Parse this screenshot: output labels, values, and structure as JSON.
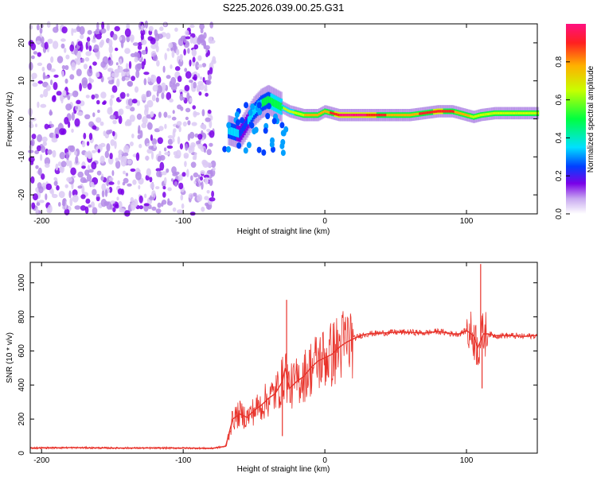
{
  "title": "S225.2026.039.00.25.G31",
  "chart_data": [
    {
      "type": "heatmap",
      "title": "S225.2026.039.00.25.G31",
      "xlabel": "Height of straight line (km)",
      "ylabel": "Frequency (Hz)",
      "xlim": [
        -208,
        150
      ],
      "ylim": [
        -25,
        25
      ],
      "xticks": [
        -200,
        -100,
        0,
        100
      ],
      "xtick_labels": [
        "-200",
        "-100",
        "0",
        "100"
      ],
      "yticks": [
        -20,
        -10,
        0,
        10,
        20
      ],
      "ytick_labels": [
        "-20",
        "-10",
        "0",
        "10",
        "20"
      ],
      "noise_region_x": [
        -208,
        -78
      ],
      "ridge": {
        "x": [
          -68,
          -60,
          -55,
          -50,
          -45,
          -40,
          -35,
          -30,
          -25,
          -20,
          -15,
          -10,
          -5,
          0,
          5,
          10,
          20,
          30,
          40,
          50,
          60,
          70,
          80,
          90,
          100,
          105,
          110,
          120,
          130,
          140,
          150
        ],
        "freq": [
          -3,
          -4,
          -1,
          2,
          4,
          5,
          4,
          3,
          2,
          1.5,
          1,
          1,
          1,
          2,
          1.5,
          1,
          1,
          1,
          1,
          1,
          1,
          1.5,
          2,
          2,
          1,
          0.5,
          1,
          1.5,
          1.5,
          1.5,
          1.5
        ],
        "amp": [
          0.3,
          0.25,
          0.25,
          0.3,
          0.35,
          0.4,
          0.45,
          0.5,
          0.55,
          0.6,
          0.65,
          0.7,
          0.7,
          0.75,
          0.8,
          0.9,
          0.95,
          0.9,
          0.8,
          0.75,
          0.75,
          0.8,
          0.85,
          0.8,
          0.7,
          0.6,
          0.65,
          0.65,
          0.6,
          0.6,
          0.6
        ]
      },
      "colorbar": {
        "label": "Normalized spectral amplitude",
        "range": [
          0,
          1
        ],
        "ticks": [
          0.0,
          0.2,
          0.4,
          0.6,
          0.8
        ],
        "tick_labels": [
          "0.0",
          "0.2",
          "0.4",
          "0.6",
          "0.8"
        ]
      }
    },
    {
      "type": "line",
      "xlabel": "Height of straight line (km)",
      "ylabel": "SNR (10 * v/v)",
      "xlim": [
        -208,
        150
      ],
      "ylim": [
        0,
        1120
      ],
      "xticks": [
        -200,
        -100,
        0,
        100
      ],
      "xtick_labels": [
        "-200",
        "-100",
        "0",
        "100"
      ],
      "yticks": [
        0,
        200,
        400,
        600,
        800,
        1000
      ],
      "ytick_labels": [
        "0",
        "200",
        "400",
        "600",
        "800",
        "1000"
      ],
      "series": [
        {
          "name": "SNR",
          "color": "#e8322a",
          "x": [
            -208,
            -180,
            -150,
            -120,
            -100,
            -80,
            -70,
            -65,
            -60,
            -55,
            -50,
            -45,
            -40,
            -35,
            -30,
            -28,
            -25,
            -20,
            -15,
            -10,
            -5,
            0,
            5,
            10,
            15,
            20,
            25,
            30,
            40,
            50,
            60,
            70,
            80,
            90,
            95,
            100,
            105,
            108,
            110,
            112,
            115,
            120,
            130,
            140,
            150
          ],
          "y": [
            30,
            32,
            30,
            30,
            30,
            28,
            40,
            200,
            230,
            210,
            250,
            280,
            320,
            350,
            420,
            500,
            380,
            420,
            450,
            500,
            540,
            560,
            580,
            620,
            650,
            670,
            690,
            700,
            705,
            710,
            710,
            705,
            715,
            700,
            700,
            720,
            690,
            620,
            660,
            700,
            700,
            690,
            690,
            685,
            690
          ],
          "spikes": [
            {
              "x": -27,
              "y": 900
            },
            {
              "x": -30,
              "y": 100
            },
            {
              "x": 110,
              "y": 1110
            },
            {
              "x": 111,
              "y": 380
            }
          ]
        }
      ]
    }
  ]
}
